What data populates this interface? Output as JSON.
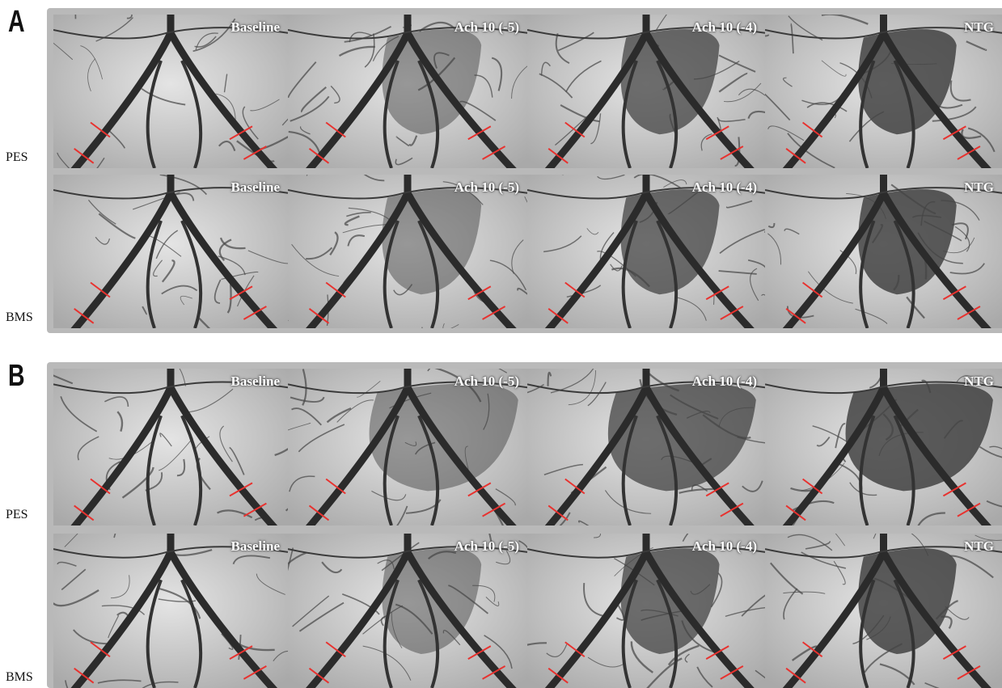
{
  "panels": [
    {
      "label": "A",
      "rows": [
        {
          "label": "PES",
          "images": [
            "Baseline",
            "Ach 10 (-5)",
            "Ach 10 (-4)",
            "NTG"
          ]
        },
        {
          "label": "BMS",
          "images": [
            "Baseline",
            "Ach 10 (-5)",
            "Ach 10 (-4)",
            "NTG"
          ]
        }
      ]
    },
    {
      "label": "B",
      "rows": [
        {
          "label": "PES",
          "images": [
            "Baseline",
            "Ach 10 (-5)",
            "Ach 10 (-4)",
            "NTG"
          ]
        },
        {
          "label": "BMS",
          "images": [
            "Baseline",
            "Ach 10 (-5)",
            "Ach 10 (-4)",
            "NTG"
          ]
        }
      ]
    }
  ]
}
